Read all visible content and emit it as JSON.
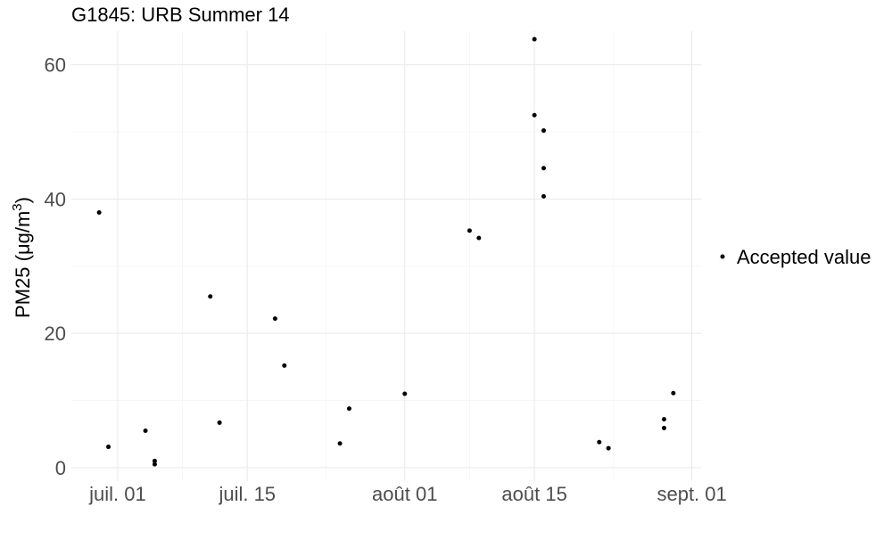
{
  "chart_data": {
    "type": "scatter",
    "title": "G1845: URB Summer 14",
    "xlabel": "",
    "ylabel": "PM25 (μg/m³)",
    "ylabel_parts": {
      "main": "PM25 (μg/m",
      "sup": "3",
      "close": ")"
    },
    "x_axis": {
      "type": "date",
      "range": [
        "2014-06-26",
        "2014-09-02"
      ],
      "ticks": [
        {
          "value": "2014-07-01",
          "label": "juil. 01"
        },
        {
          "value": "2014-07-15",
          "label": "juil. 15"
        },
        {
          "value": "2014-08-01",
          "label": "août 01"
        },
        {
          "value": "2014-08-15",
          "label": "août 15"
        },
        {
          "value": "2014-09-01",
          "label": "sept. 01"
        }
      ]
    },
    "y_axis": {
      "range": [
        -2,
        65
      ],
      "ticks": [
        0,
        20,
        40,
        60
      ],
      "tick_labels": [
        "0",
        "20",
        "40",
        "60"
      ]
    },
    "grid": true,
    "legend": {
      "placement": "right",
      "entries": [
        "Accepted value"
      ]
    },
    "series": [
      {
        "name": "Accepted value",
        "color": "#000000",
        "points": [
          {
            "x": "2014-06-29",
            "y": 38.0
          },
          {
            "x": "2014-06-30",
            "y": 3.1
          },
          {
            "x": "2014-07-04",
            "y": 5.5
          },
          {
            "x": "2014-07-05",
            "y": 1.0
          },
          {
            "x": "2014-07-05",
            "y": 0.5
          },
          {
            "x": "2014-07-11",
            "y": 25.5
          },
          {
            "x": "2014-07-12",
            "y": 6.7
          },
          {
            "x": "2014-07-18",
            "y": 22.2
          },
          {
            "x": "2014-07-19",
            "y": 15.2
          },
          {
            "x": "2014-07-25",
            "y": 3.6
          },
          {
            "x": "2014-07-26",
            "y": 8.8
          },
          {
            "x": "2014-08-01",
            "y": 11.0
          },
          {
            "x": "2014-08-08",
            "y": 35.3
          },
          {
            "x": "2014-08-09",
            "y": 34.2
          },
          {
            "x": "2014-08-15",
            "y": 63.8
          },
          {
            "x": "2014-08-15",
            "y": 52.5
          },
          {
            "x": "2014-08-16",
            "y": 50.2
          },
          {
            "x": "2014-08-16",
            "y": 44.6
          },
          {
            "x": "2014-08-16",
            "y": 40.4
          },
          {
            "x": "2014-08-22",
            "y": 3.8
          },
          {
            "x": "2014-08-23",
            "y": 2.9
          },
          {
            "x": "2014-08-29",
            "y": 7.2
          },
          {
            "x": "2014-08-29",
            "y": 5.9
          },
          {
            "x": "2014-08-30",
            "y": 11.1
          }
        ]
      }
    ]
  }
}
